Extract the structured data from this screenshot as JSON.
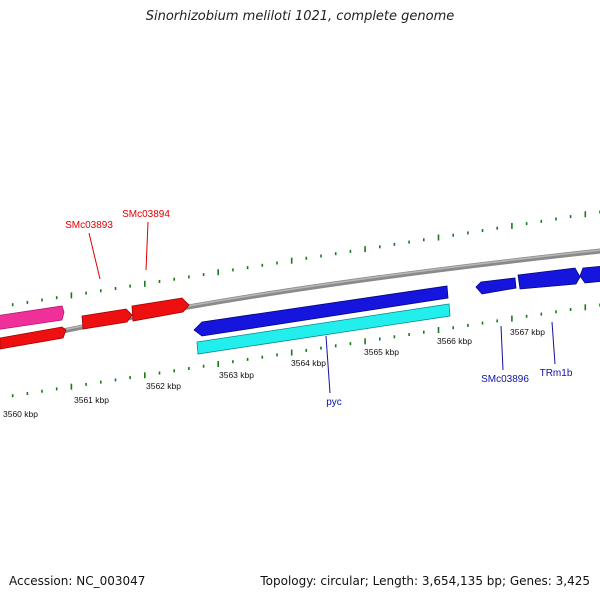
{
  "title": "Sinorhizobium meliloti 1021, complete genome",
  "footer": {
    "accession": "Accession: NC_003047",
    "summary": "Topology: circular; Length: 3,654,135 bp; Genes: 3,425"
  },
  "colors": {
    "backbone": "#8a8a8a",
    "tick_marks": "#1a7a1a",
    "forward_gene": "#1515dd",
    "forward_gene_label": "#1010a8",
    "reverse_gene": "#ee1010",
    "reverse_gene_label": "#dd0000",
    "reverse_gene_other": "#f0309a",
    "cds_feature": "#22eeee"
  },
  "scale_labels": [
    {
      "kbp": 3560,
      "text": "3560 kbp"
    },
    {
      "kbp": 3561,
      "text": "3561 kbp"
    },
    {
      "kbp": 3562,
      "text": "3562 kbp"
    },
    {
      "kbp": 3563,
      "text": "3563 kbp"
    },
    {
      "kbp": 3564,
      "text": "3564 kbp"
    },
    {
      "kbp": 3565,
      "text": "3565 kbp"
    },
    {
      "kbp": 3566,
      "text": "3566 kbp"
    },
    {
      "kbp": 3567,
      "text": "3567 kbp"
    }
  ],
  "genes": [
    {
      "name": "SMc03893",
      "strand": "reverse"
    },
    {
      "name": "SMc03894",
      "strand": "reverse"
    },
    {
      "name": "pyc",
      "strand": "forward"
    },
    {
      "name": "SMc03896",
      "strand": "forward"
    },
    {
      "name": "TRm1b",
      "strand": "forward"
    }
  ]
}
